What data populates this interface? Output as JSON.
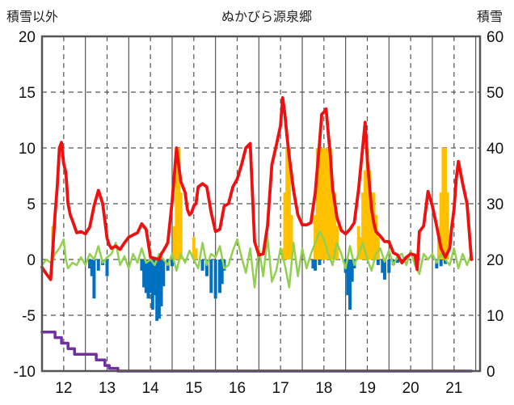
{
  "chart_data": {
    "type": "line",
    "title": "ぬかびら源泉郷",
    "left_axis_label": "積雪以外",
    "right_axis_label": "積雪",
    "x_ticks": [
      "12",
      "13",
      "14",
      "15",
      "16",
      "17",
      "18",
      "19",
      "20",
      "21"
    ],
    "y_left_ticks": [
      "20",
      "15",
      "10",
      "5",
      "0",
      "-5",
      "-10"
    ],
    "y_right_ticks": [
      "60",
      "50",
      "40",
      "30",
      "20",
      "10",
      "0"
    ],
    "y_left_range": [
      -10,
      20
    ],
    "y_right_range": [
      0,
      60
    ],
    "x_range": [
      11.5,
      21.6
    ],
    "grid": {
      "x_dashed": true,
      "y_dashed": true
    },
    "colors": {
      "temperature": "#ee1111",
      "precipitation": "#ffc000",
      "wind": "#92d050",
      "negative_bars": "#0070c0",
      "snow_depth": "#7030a0",
      "grid": "#555555"
    },
    "series": [
      {
        "role": "temperature",
        "x": [
          11.5,
          11.6,
          11.7,
          11.75,
          11.8,
          11.85,
          11.9,
          11.95,
          12.0,
          12.05,
          12.1,
          12.15,
          12.2,
          12.3,
          12.4,
          12.5,
          12.6,
          12.7,
          12.8,
          12.9,
          13.0,
          13.05,
          13.1,
          13.2,
          13.3,
          13.4,
          13.5,
          13.6,
          13.7,
          13.8,
          13.9,
          14.0,
          14.1,
          14.2,
          14.25,
          14.3,
          14.4,
          14.5,
          14.6,
          14.7,
          14.8,
          14.85,
          14.9,
          14.95,
          15.0,
          15.05,
          15.1,
          15.2,
          15.3,
          15.4,
          15.5,
          15.6,
          15.7,
          15.8,
          15.9,
          16.0,
          16.1,
          16.2,
          16.3,
          16.4,
          16.5,
          16.6,
          16.7,
          16.8,
          16.9,
          17.0,
          17.05,
          17.1,
          17.15,
          17.2,
          17.3,
          17.4,
          17.5,
          17.6,
          17.7,
          17.8,
          17.9,
          17.95,
          18.0,
          18.05,
          18.1,
          18.15,
          18.2,
          18.3,
          18.4,
          18.5,
          18.6,
          18.7,
          18.8,
          18.9,
          18.95,
          19.0,
          19.05,
          19.1,
          19.15,
          19.2,
          19.3,
          19.4,
          19.5,
          19.6,
          19.7,
          19.8,
          19.9,
          20.0,
          20.1,
          20.15,
          20.2,
          20.3,
          20.4,
          20.5,
          20.6,
          20.7,
          20.8,
          20.9,
          20.95,
          21.0,
          21.05,
          21.1,
          21.2,
          21.3,
          21.4
        ],
        "y": [
          -0.7,
          -1.3,
          -1.8,
          1.0,
          4.0,
          6.5,
          10.0,
          10.5,
          8.6,
          7.8,
          5.0,
          4.0,
          3.5,
          2.4,
          2.5,
          2.3,
          2.9,
          4.8,
          6.2,
          5.0,
          1.9,
          1.3,
          1.0,
          1.2,
          0.9,
          1.5,
          2.0,
          2.2,
          2.4,
          3.2,
          2.7,
          0.2,
          0.1,
          0.0,
          0.5,
          0.8,
          1.5,
          5.2,
          10.0,
          7.0,
          6.0,
          4.5,
          4.0,
          4.2,
          4.8,
          5.0,
          6.5,
          6.8,
          6.5,
          4.2,
          2.5,
          2.7,
          4.8,
          5.0,
          6.5,
          7.2,
          8.5,
          10.0,
          10.4,
          1.6,
          0.4,
          0.5,
          3.0,
          8.5,
          10.2,
          12.0,
          14.5,
          13.0,
          11.0,
          9.2,
          6.2,
          4.0,
          3.1,
          3.1,
          3.3,
          6.0,
          10.5,
          13.0,
          13.2,
          13.5,
          11.3,
          9.2,
          6.4,
          3.8,
          2.6,
          2.3,
          2.7,
          3.3,
          6.3,
          10.3,
          12.3,
          9.0,
          6.6,
          4.5,
          3.3,
          2.5,
          2.1,
          1.6,
          1.6,
          0.6,
          0.4,
          -0.3,
          0.2,
          0.5,
          0.4,
          -0.9,
          2.5,
          3.0,
          6.1,
          4.8,
          3.0,
          1.0,
          0.2,
          1.0,
          3.0,
          4.5,
          7.2,
          8.8,
          6.8,
          5.0,
          0.0
        ]
      },
      {
        "role": "precipitation_bars",
        "x": [
          11.75,
          14.55,
          14.6,
          14.65,
          14.7,
          15.0,
          15.05,
          17.05,
          17.1,
          17.15,
          17.2,
          17.25,
          17.8,
          17.85,
          17.9,
          17.95,
          18.0,
          18.05,
          18.1,
          18.15,
          18.2,
          18.25,
          18.3,
          18.8,
          18.85,
          18.9,
          18.95,
          19.0,
          19.05,
          19.1,
          19.15,
          19.2,
          19.25,
          20.65,
          20.7,
          20.75,
          20.8,
          20.85
        ],
        "y": [
          3,
          3,
          10,
          10,
          6,
          2,
          1,
          1,
          6,
          10,
          10,
          4,
          4,
          10,
          10,
          10,
          10,
          10,
          10,
          10,
          6,
          6,
          3,
          3,
          2,
          6,
          8,
          10,
          8,
          6,
          6,
          4,
          2,
          2,
          6,
          10,
          10,
          6
        ]
      },
      {
        "role": "negative_bars",
        "x": [
          12.6,
          12.65,
          12.7,
          12.8,
          12.9,
          13.0,
          13.8,
          13.85,
          13.9,
          13.95,
          14.0,
          14.05,
          14.1,
          14.15,
          14.2,
          14.25,
          14.3,
          14.4,
          14.5,
          15.2,
          15.3,
          15.4,
          15.5,
          15.6,
          15.65,
          15.7,
          17.75,
          17.8,
          17.9,
          18.5,
          18.55,
          18.6,
          18.65,
          18.7,
          19.25,
          19.35,
          19.4,
          19.5,
          19.6,
          19.7,
          20.6,
          20.7,
          20.8
        ],
        "y": [
          -0.8,
          -1.5,
          -3.5,
          -1.0,
          -0.5,
          -1.5,
          -1.0,
          -2.5,
          -3.0,
          -3.5,
          -3.0,
          -4.5,
          -3.2,
          -5.5,
          -5.3,
          -4.2,
          -2.4,
          -1.0,
          -0.6,
          -1.0,
          -1.5,
          -3.0,
          -3.5,
          -3.0,
          -2.2,
          -1.0,
          -0.8,
          -1.0,
          -0.5,
          -1.2,
          -3.2,
          -4.5,
          -2.0,
          -0.8,
          -0.5,
          -1.2,
          -1.8,
          -1.2,
          -0.5,
          -0.3,
          -0.8,
          -0.6,
          -0.4
        ]
      },
      {
        "role": "wind",
        "x": [
          11.5,
          11.6,
          11.7,
          11.8,
          11.9,
          12.0,
          12.05,
          12.1,
          12.2,
          12.3,
          12.4,
          12.5,
          12.6,
          12.7,
          12.8,
          12.9,
          13.0,
          13.1,
          13.2,
          13.3,
          13.4,
          13.5,
          13.6,
          13.7,
          13.8,
          13.9,
          14.0,
          14.1,
          14.2,
          14.3,
          14.4,
          14.5,
          14.6,
          14.7,
          14.8,
          14.9,
          15.0,
          15.1,
          15.2,
          15.3,
          15.4,
          15.5,
          15.6,
          15.7,
          15.8,
          15.9,
          16.0,
          16.1,
          16.2,
          16.3,
          16.4,
          16.5,
          16.6,
          16.7,
          16.8,
          16.9,
          17.0,
          17.1,
          17.2,
          17.3,
          17.4,
          17.5,
          17.6,
          17.7,
          17.8,
          17.9,
          18.0,
          18.1,
          18.2,
          18.3,
          18.4,
          18.5,
          18.6,
          18.7,
          18.8,
          18.9,
          19.0,
          19.1,
          19.2,
          19.3,
          19.4,
          19.5,
          19.6,
          19.7,
          19.8,
          19.9,
          20.0,
          20.1,
          20.2,
          20.3,
          20.4,
          20.5,
          20.6,
          20.7,
          20.8,
          20.9,
          21.0,
          21.1,
          21.2,
          21.3,
          21.4
        ],
        "y": [
          -0.5,
          0.0,
          -0.3,
          0.5,
          1.0,
          1.8,
          0.0,
          -0.8,
          -0.3,
          -0.5,
          0.2,
          -0.5,
          0.5,
          0.0,
          1.2,
          -0.3,
          0.2,
          0.5,
          1.5,
          -0.5,
          0.3,
          -0.8,
          0.5,
          -0.3,
          1.0,
          -0.3,
          0.0,
          -0.5,
          0.5,
          0.0,
          -0.5,
          0.5,
          -1.0,
          0.5,
          -0.3,
          0.8,
          0.0,
          -0.8,
          1.5,
          -0.5,
          0.5,
          0.2,
          1.2,
          -0.8,
          -0.5,
          0.8,
          1.8,
          0.2,
          -1.2,
          1.0,
          -2.5,
          1.0,
          -1.5,
          2.0,
          -2.0,
          -1.0,
          1.0,
          -0.5,
          -2.5,
          1.5,
          -1.5,
          1.0,
          -0.8,
          0.5,
          1.5,
          2.5,
          1.8,
          0.5,
          -0.5,
          1.5,
          0.5,
          -0.8,
          1.2,
          -0.5,
          0.5,
          1.5,
          0.0,
          -1.0,
          0.5,
          1.0,
          -0.2,
          0.8,
          -0.5,
          0.3,
          0.5,
          -0.5,
          0.8,
          -0.5,
          -1.3,
          0.5,
          0.0,
          0.5,
          -0.3,
          0.5,
          0.0,
          -0.5,
          1.0,
          -0.8,
          0.5,
          -0.5,
          0.5
        ]
      },
      {
        "role": "snow_depth",
        "axis": "right",
        "x": [
          11.5,
          11.8,
          11.8,
          11.95,
          11.95,
          12.1,
          12.1,
          12.25,
          12.25,
          12.75,
          12.75,
          12.95,
          12.95,
          13.05,
          13.05,
          13.25,
          13.25,
          21.4
        ],
        "y": [
          7,
          7,
          6,
          6,
          5,
          5,
          4,
          4,
          3,
          3,
          2,
          2,
          1,
          1,
          0.5,
          0.5,
          0,
          0
        ]
      }
    ]
  }
}
